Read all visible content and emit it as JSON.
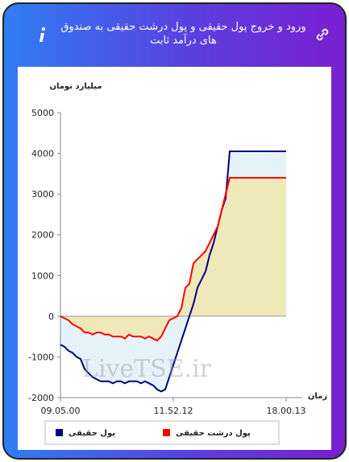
{
  "chart_data": {
    "type": "line",
    "title": "ورود و خروج پول حقیقی و پول درشت حقیقی به صندوق های درآمد ثابت",
    "y_label": "میلیارد تومان",
    "x_label": "زمان",
    "watermark": "LiveTSE.ir",
    "categories": [
      "09.05.00",
      null,
      null,
      null,
      null,
      null,
      null,
      null,
      null,
      null,
      null,
      null,
      null,
      null,
      null,
      null,
      null,
      null,
      null,
      null,
      null,
      null,
      null,
      null,
      null,
      null,
      null,
      null,
      "11.52.12",
      null,
      null,
      null,
      null,
      null,
      null,
      null,
      null,
      null,
      null,
      null,
      null,
      null,
      null,
      null,
      null,
      null,
      null,
      null,
      null,
      null,
      null,
      null,
      null,
      null,
      null,
      null,
      "18.00.13"
    ],
    "series": [
      {
        "name": "پول حقیقی",
        "color": "#000080",
        "area_color": "#e6f2fa",
        "values": [
          -700,
          -750,
          -850,
          -900,
          -1000,
          -1050,
          -1300,
          -1400,
          -1500,
          -1550,
          -1600,
          -1600,
          -1600,
          -1650,
          -1600,
          -1600,
          -1650,
          -1600,
          -1600,
          -1600,
          -1650,
          -1600,
          -1650,
          -1700,
          -1800,
          -1850,
          -1800,
          -1500,
          -1200,
          -900,
          -600,
          -300,
          0,
          300,
          700,
          900,
          1100,
          1500,
          1800,
          2200,
          2600,
          2900,
          4050,
          4050,
          4050,
          4050,
          4050,
          4050,
          4050,
          4050,
          4050,
          4050,
          4050,
          4050,
          4050,
          4050,
          4050
        ]
      },
      {
        "name": "پول درشت حقیقی",
        "color": "#ff0000",
        "area_color": "#efe8b8",
        "values": [
          0,
          -50,
          -100,
          -200,
          -250,
          -300,
          -400,
          -400,
          -450,
          -400,
          -400,
          -450,
          -450,
          -500,
          -500,
          -500,
          -550,
          -450,
          -500,
          -500,
          -500,
          -550,
          -500,
          -550,
          -600,
          -500,
          -300,
          -100,
          -50,
          0,
          200,
          700,
          800,
          1300,
          1400,
          1500,
          1600,
          1800,
          2000,
          2200,
          2600,
          3000,
          3400,
          3400,
          3400,
          3400,
          3400,
          3400,
          3400,
          3400,
          3400,
          3400,
          3400,
          3400,
          3400,
          3400,
          3400
        ]
      }
    ],
    "ylim": [
      -2000,
      5000
    ],
    "yticks": [
      -2000,
      -1000,
      0,
      1000,
      2000,
      3000,
      4000,
      5000
    ]
  }
}
